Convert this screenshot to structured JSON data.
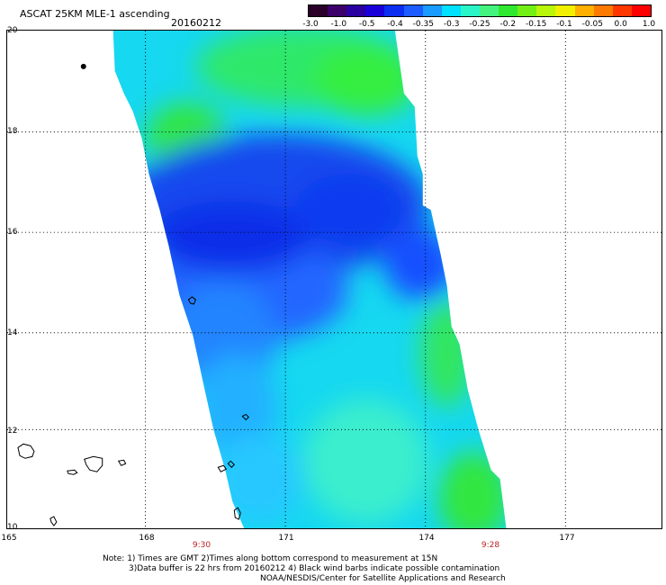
{
  "header": {
    "title": "ASCAT 25KM MLE-1 ascending",
    "date": "20160212"
  },
  "colorbar": {
    "ticks": [
      "-3.0",
      "-1.0",
      "-0.5",
      "-0.4",
      "-0.35",
      "-0.3",
      "-0.25",
      "-0.2",
      "-0.15",
      "-0.1",
      "-0.05",
      "0.0",
      "1.0"
    ],
    "colors": [
      "#2a0028",
      "#3b006a",
      "#2a00a0",
      "#1900d8",
      "#0b2ef0",
      "#1d5cff",
      "#1a9bff",
      "#00e0ff",
      "#2af5c8",
      "#44f37e",
      "#30e830",
      "#72ef15",
      "#b8f60a",
      "#f0f000",
      "#ffb000",
      "#ff7a00",
      "#ff3800",
      "#ff0000"
    ]
  },
  "map": {
    "lat_labels": [
      "20",
      "18",
      "16",
      "14",
      "12",
      "10"
    ],
    "lon_labels": [
      "165",
      "168",
      "171",
      "174",
      "177"
    ],
    "time_labels": [
      "9:30",
      "9:28"
    ]
  },
  "footer": {
    "note1": "Note: 1) Times are GMT 2)Times along bottom correspond to measurement at 15N",
    "note2": "3)Data buffer is 22 hrs from 20160212 4) Black wind barbs indicate possible contamination",
    "credit": "NOAA/NESDIS/Center for Satellite Applications and Research"
  }
}
